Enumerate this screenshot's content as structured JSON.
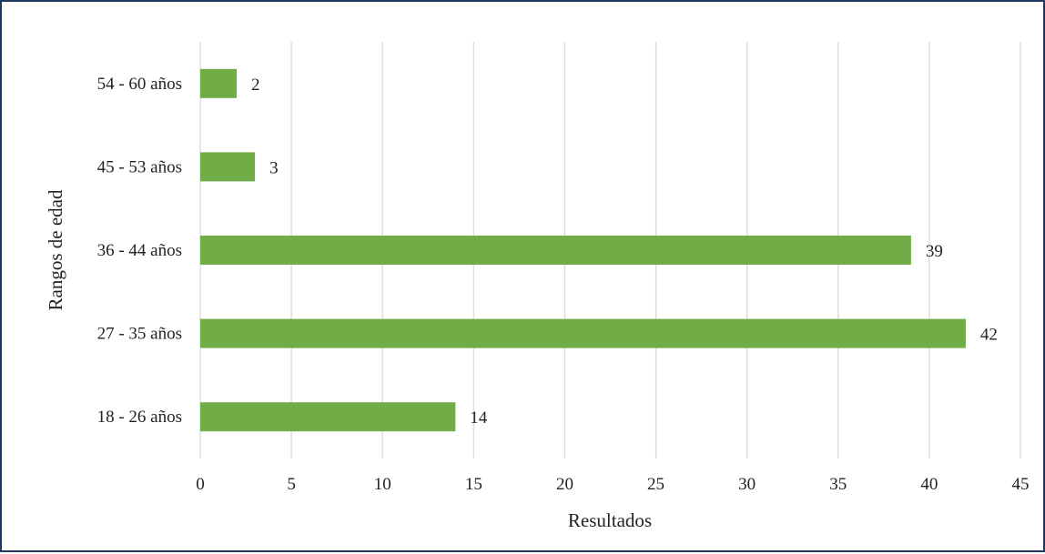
{
  "chart_data": {
    "type": "bar",
    "orientation": "horizontal",
    "categories": [
      "18 - 26 años",
      "27 - 35 años",
      "36 - 44 años",
      "45 - 53 años",
      "54 - 60 años"
    ],
    "series": [
      {
        "values": [
          14,
          42,
          39,
          3,
          2
        ]
      }
    ],
    "data_labels": [
      "14",
      "42",
      "39",
      "3",
      "2"
    ],
    "x_ticks": [
      "0",
      "5",
      "10",
      "15",
      "20",
      "25",
      "30",
      "35",
      "40",
      "45"
    ],
    "xlim": [
      0,
      45
    ],
    "xlabel": "Resultados",
    "ylabel": "Rangos de edad",
    "grid": "vertical",
    "legend": "none",
    "bar_color": "#70ad47",
    "grid_color": "#d9d9d9",
    "border_color": "#1f3864"
  }
}
